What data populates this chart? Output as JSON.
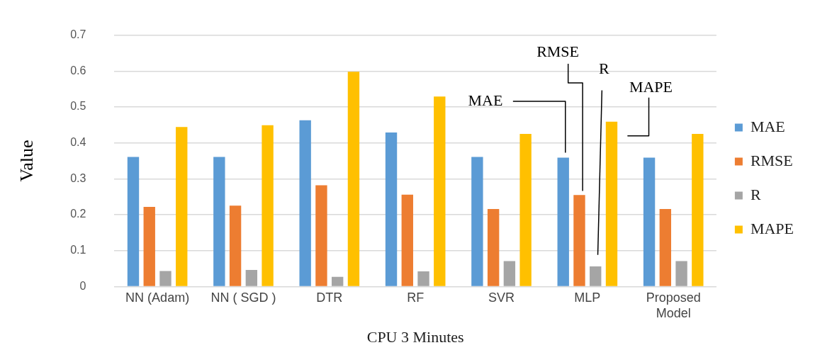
{
  "chart_data": {
    "type": "bar",
    "xlabel": "CPU 3 Minutes",
    "ylabel": "Value",
    "categories": [
      "NN (Adam)",
      "NN ( SGD )",
      "DTR",
      "RF",
      "SVR",
      "MLP",
      "Proposed Model"
    ],
    "series": [
      {
        "name": "MAE",
        "color": "#5b9bd5",
        "values": [
          0.361,
          0.361,
          0.463,
          0.429,
          0.361,
          0.359,
          0.359
        ]
      },
      {
        "name": "RMSE",
        "color": "#ed7d31",
        "values": [
          0.222,
          0.225,
          0.282,
          0.256,
          0.216,
          0.255,
          0.216
        ]
      },
      {
        "name": "R",
        "color": "#a5a5a5",
        "values": [
          0.043,
          0.046,
          0.027,
          0.042,
          0.071,
          0.056,
          0.071
        ]
      },
      {
        "name": "MAPE",
        "color": "#ffc000",
        "values": [
          0.444,
          0.449,
          0.598,
          0.529,
          0.425,
          0.459,
          0.425
        ]
      }
    ],
    "ylim": [
      0,
      0.7
    ],
    "yticks": [
      0,
      0.1,
      0.2,
      0.3,
      0.4,
      0.5,
      0.6,
      0.7
    ],
    "grid": "y",
    "legend": "right",
    "annotations": [
      "MAE",
      "RMSE",
      "R",
      "MAPE"
    ]
  }
}
